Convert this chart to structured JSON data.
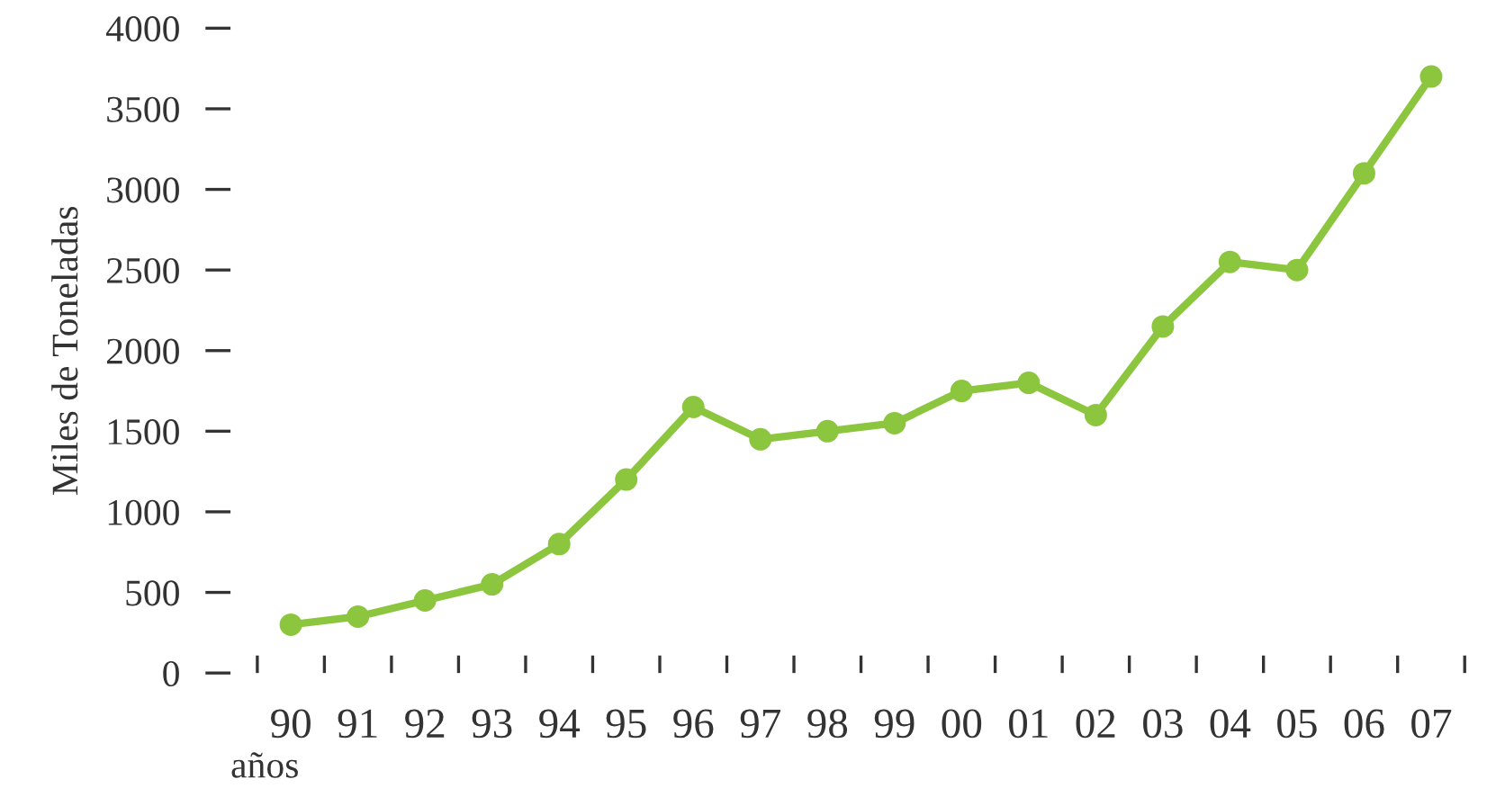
{
  "chart_data": {
    "type": "line",
    "xlabel": "años",
    "ylabel": "Miles de Toneladas",
    "categories": [
      "90",
      "91",
      "92",
      "93",
      "94",
      "95",
      "96",
      "97",
      "98",
      "99",
      "00",
      "01",
      "02",
      "03",
      "04",
      "05",
      "06",
      "07"
    ],
    "series": [
      {
        "color": "#8cc63f",
        "values": [
          300,
          350,
          450,
          550,
          800,
          1200,
          1650,
          1450,
          1500,
          1550,
          1750,
          1800,
          1600,
          2150,
          2550,
          2500,
          3100,
          3700
        ]
      }
    ],
    "ylim": [
      0,
      4000
    ],
    "yticks": [
      0,
      500,
      1000,
      1500,
      2000,
      2500,
      3000,
      3500,
      4000
    ],
    "marker": "circle",
    "line_style": "solid",
    "grid": false,
    "legend": false
  }
}
